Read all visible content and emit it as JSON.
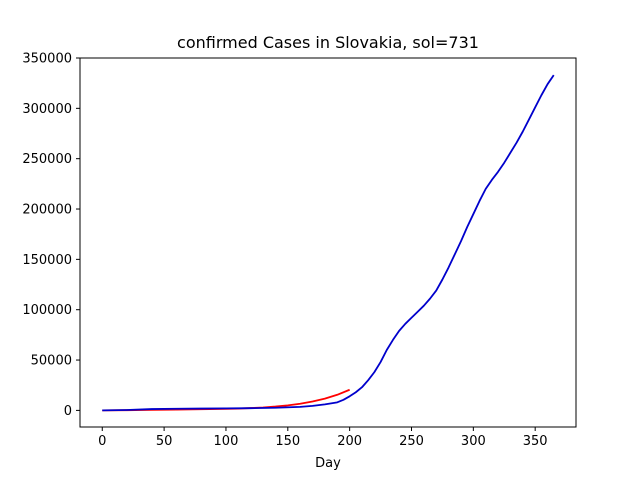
{
  "chart_data": {
    "type": "line",
    "title": "confirmed Cases in Slovakia, sol=731",
    "xlabel": "Day",
    "ylabel": "",
    "xlim": [
      -18,
      383
    ],
    "ylim": [
      -16500,
      350000
    ],
    "xticks": [
      0,
      50,
      100,
      150,
      200,
      250,
      300,
      350
    ],
    "yticks": [
      0,
      50000,
      100000,
      150000,
      200000,
      250000,
      300000,
      350000
    ],
    "grid": false,
    "legend": "none",
    "series": [
      {
        "color": "#ff0000",
        "x": [
          0,
          20,
          40,
          60,
          80,
          100,
          110,
          120,
          130,
          140,
          150,
          160,
          170,
          180,
          190,
          200
        ],
        "y": [
          0,
          200,
          500,
          800,
          1100,
          1500,
          1800,
          2300,
          2900,
          3800,
          5000,
          6600,
          8800,
          11700,
          15500,
          20500
        ]
      },
      {
        "color": "#0000cc",
        "x": [
          0,
          20,
          40,
          60,
          80,
          100,
          120,
          140,
          160,
          170,
          180,
          190,
          195,
          200,
          205,
          210,
          215,
          220,
          225,
          230,
          235,
          240,
          245,
          250,
          255,
          260,
          265,
          270,
          275,
          280,
          285,
          290,
          295,
          300,
          305,
          310,
          315,
          320,
          325,
          330,
          335,
          340,
          345,
          350,
          355,
          360,
          365
        ],
        "y": [
          0,
          400,
          1300,
          1600,
          1800,
          2000,
          2200,
          2600,
          3500,
          4500,
          6000,
          8000,
          10500,
          14000,
          18000,
          23000,
          30000,
          38000,
          48000,
          60000,
          70000,
          79000,
          86000,
          92000,
          98000,
          104000,
          111000,
          119000,
          130000,
          142000,
          155000,
          168000,
          182000,
          195000,
          208000,
          220000,
          229000,
          237000,
          246000,
          256000,
          266000,
          277000,
          289000,
          301000,
          313000,
          324000,
          333000
        ]
      }
    ]
  }
}
